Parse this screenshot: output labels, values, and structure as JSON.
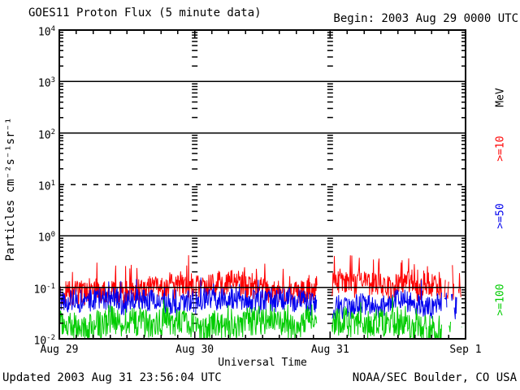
{
  "footer": {
    "updated": "Updated 2003 Aug 31 23:56:04 UTC",
    "source": "NOAA/SEC Boulder, CO USA"
  },
  "chart_data": {
    "type": "line",
    "title": "GOES11 Proton Flux (5 minute data)",
    "begin_label": "Begin: 2003 Aug 29 0000 UTC",
    "xlabel": "Universal Time",
    "ylabel": "Particles cm⁻²s⁻¹sr⁻¹",
    "unit_label": "MeV",
    "y_scale": "log10",
    "y_log_range": [
      -2,
      4
    ],
    "y_tick_exponents": [
      4,
      3,
      2,
      1,
      0,
      -1,
      -2
    ],
    "x_range_hours": [
      0,
      72
    ],
    "minor_tick_hours": 3,
    "x_ticks": [
      {
        "hour": 0,
        "label": "Aug 29"
      },
      {
        "hour": 24,
        "label": "Aug 30"
      },
      {
        "hour": 48,
        "label": "Aug 31"
      },
      {
        "hour": 72,
        "label": "Sep 1"
      }
    ],
    "grid": {
      "solid_gridline_exponents": [
        3,
        2,
        0,
        -1
      ],
      "dashed_gridline_exponents": [
        1
      ],
      "day_line_hours": [
        24,
        48
      ]
    },
    "cadence_minutes": 5,
    "seed": 20030829,
    "data_gaps_hours": [
      [
        45.7,
        48.3
      ]
    ],
    "sparse_after_hour": 67.8,
    "data_end_hour": 71.4,
    "series": [
      {
        "name": ">=10",
        "color": "#ff0000",
        "approx_median_flux": 0.1,
        "log10_base": -1.02,
        "log10_spread": 0.24,
        "spike_prob": 0.06,
        "spike_mag": 0.45,
        "log10_floor": -2
      },
      {
        "name": ">=50",
        "color": "#0000ee",
        "approx_median_flux": 0.05,
        "log10_base": -1.33,
        "log10_spread": 0.22,
        "spike_prob": 0.03,
        "spike_mag": 0.3,
        "log10_floor": -2
      },
      {
        "name": ">=100",
        "color": "#00cc00",
        "approx_median_flux": 0.02,
        "log10_base": -1.72,
        "log10_spread": 0.28,
        "spike_prob": 0.03,
        "spike_mag": 0.3,
        "log10_floor": -2
      }
    ],
    "axis_color": "#000000"
  }
}
